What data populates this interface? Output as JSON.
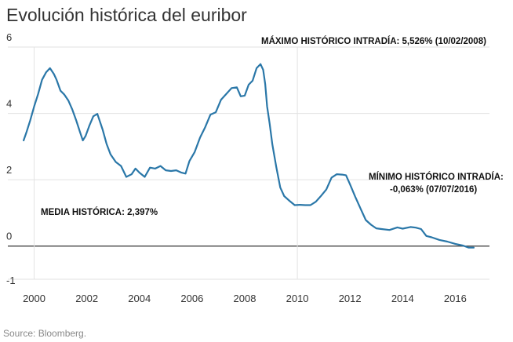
{
  "chart_data": {
    "type": "line",
    "title": "Evolución histórica del euribor",
    "source": "Source: Bloomberg.",
    "xlabel": "",
    "ylabel": "",
    "xlim": [
      1999.0,
      2017.3
    ],
    "ylim": [
      -1,
      6
    ],
    "x_ticks": [
      "2000",
      "2002",
      "2004",
      "2006",
      "2008",
      "2010",
      "2012",
      "2014",
      "2016"
    ],
    "y_ticks": [
      "6",
      "4",
      "2",
      "0",
      "-1"
    ],
    "grid": true,
    "line_color": "#2a77a8",
    "annotations": {
      "max": "MÁXIMO HISTÓRICO INTRADÍA: 5,526% (10/02/2008)",
      "min_line1": "MÍNIMO HISTÓRICO INTRADÍA:",
      "min_line2": "-0,063% (07/07/2016)",
      "mean": "MEDIA HISTÓRICA: 2,397%"
    },
    "series": [
      {
        "x": [
          1999.6,
          1999.7,
          1999.85,
          2000.0,
          2000.15,
          2000.3,
          2000.45,
          2000.6,
          2000.75,
          2000.85,
          2001.0,
          2001.15,
          2001.3,
          2001.45,
          2001.6,
          2001.75,
          2001.85,
          2001.95,
          2002.1,
          2002.25,
          2002.4,
          2002.6,
          2002.75,
          2002.9,
          2003.1,
          2003.3,
          2003.5,
          2003.7,
          2003.85,
          2004.0,
          2004.2,
          2004.4,
          2004.6,
          2004.8,
          2005.0,
          2005.2,
          2005.4,
          2005.6,
          2005.75,
          2005.9,
          2006.1,
          2006.3,
          2006.5,
          2006.7,
          2006.9,
          2007.1,
          2007.3,
          2007.5,
          2007.7,
          2007.85,
          2008.0,
          2008.15,
          2008.3,
          2008.45,
          2008.6,
          2008.7,
          2008.78,
          2008.85,
          2008.95,
          2009.05,
          2009.2,
          2009.35,
          2009.5,
          2009.7,
          2009.9,
          2010.1,
          2010.3,
          2010.5,
          2010.7,
          2010.9,
          2011.1,
          2011.3,
          2011.5,
          2011.7,
          2011.85,
          2012.0,
          2012.2,
          2012.4,
          2012.6,
          2012.8,
          2013.0,
          2013.2,
          2013.5,
          2013.8,
          2014.0,
          2014.3,
          2014.5,
          2014.7,
          2014.9,
          2015.1,
          2015.4,
          2015.7,
          2016.0,
          2016.3,
          2016.5,
          2016.7
        ],
        "y": [
          3.2,
          3.4,
          3.8,
          4.2,
          4.6,
          5.0,
          5.25,
          5.35,
          5.2,
          5.0,
          4.7,
          4.55,
          4.4,
          4.1,
          3.8,
          3.4,
          3.2,
          3.3,
          3.65,
          3.9,
          4.0,
          3.5,
          3.1,
          2.75,
          2.55,
          2.4,
          2.1,
          2.15,
          2.35,
          2.2,
          2.1,
          2.35,
          2.35,
          2.4,
          2.3,
          2.25,
          2.3,
          2.2,
          2.2,
          2.55,
          2.85,
          3.25,
          3.6,
          3.95,
          4.05,
          4.4,
          4.6,
          4.75,
          4.8,
          4.5,
          4.55,
          4.85,
          5.0,
          5.35,
          5.5,
          5.3,
          4.9,
          4.2,
          3.7,
          3.05,
          2.4,
          1.75,
          1.52,
          1.35,
          1.25,
          1.23,
          1.25,
          1.22,
          1.35,
          1.5,
          1.72,
          2.05,
          2.18,
          2.14,
          2.15,
          1.85,
          1.5,
          1.12,
          0.8,
          0.63,
          0.55,
          0.5,
          0.5,
          0.55,
          0.54,
          0.56,
          0.57,
          0.5,
          0.32,
          0.25,
          0.2,
          0.12,
          0.08,
          0.0,
          -0.03,
          -0.06
        ]
      }
    ]
  }
}
